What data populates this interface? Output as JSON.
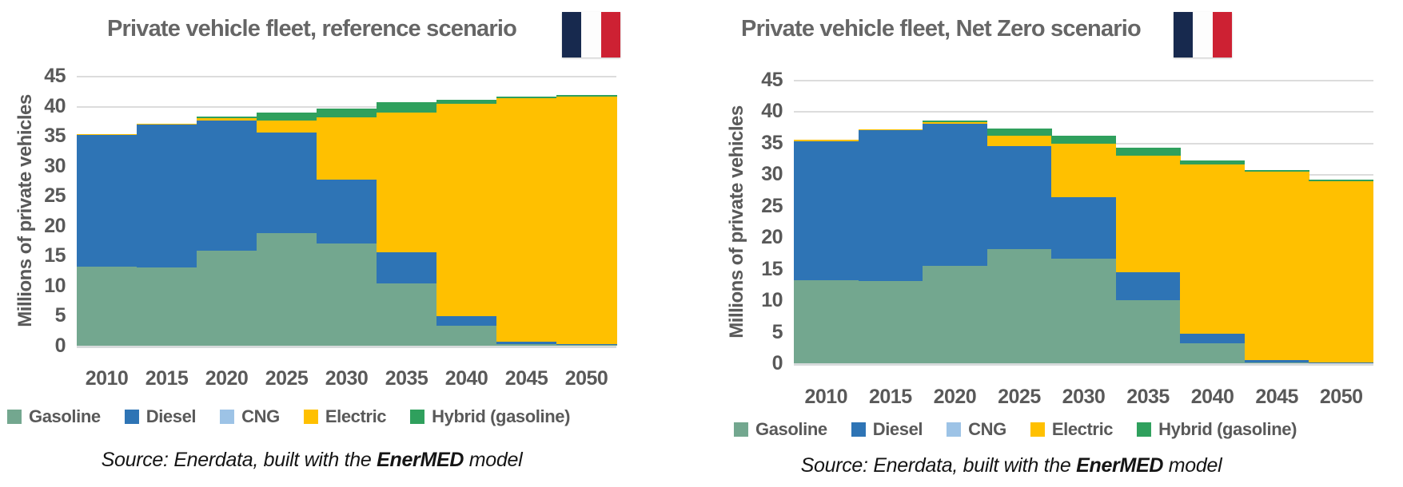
{
  "page": {
    "background": "#ffffff"
  },
  "legend_note": "legend items are derived from each chart's series names and colors",
  "chart_data": [
    {
      "type": "bar",
      "subtype": "stacked-step-100pct-gap0",
      "title": "Private vehicle fleet, reference scenario",
      "ylabel": "Millions of private vehicles",
      "xlabel": "",
      "ylim": [
        0,
        45
      ],
      "ytick_step": 5,
      "grid": true,
      "legend_position": "bottom",
      "flag_icon": "france-flag",
      "categories": [
        "2010",
        "2015",
        "2020",
        "2025",
        "2030",
        "2035",
        "2040",
        "2045",
        "2050"
      ],
      "series": [
        {
          "name": "Gasoline",
          "color": "#73a78f",
          "values": [
            13.2,
            13.0,
            15.8,
            18.8,
            17.0,
            10.4,
            3.3,
            0.3,
            0.1
          ]
        },
        {
          "name": "Diesel",
          "color": "#2e74b5",
          "values": [
            21.9,
            23.9,
            21.8,
            16.8,
            10.7,
            5.2,
            1.6,
            0.4,
            0.1
          ]
        },
        {
          "name": "CNG",
          "color": "#9dc3e6",
          "values": [
            0,
            0,
            0,
            0,
            0,
            0,
            0,
            0,
            0
          ]
        },
        {
          "name": "Electric",
          "color": "#ffc000",
          "values": [
            0.2,
            0.1,
            0.4,
            2.0,
            10.4,
            23.3,
            35.4,
            40.6,
            41.4
          ]
        },
        {
          "name": "Hybrid (gasoline)",
          "color": "#2fa05d",
          "values": [
            0,
            0,
            0.2,
            1.3,
            1.4,
            1.7,
            0.7,
            0.3,
            0.2
          ]
        }
      ],
      "totals_read_from_chart": [
        35.3,
        37.0,
        38.2,
        38.9,
        39.5,
        40.6,
        41.0,
        41.6,
        41.8
      ],
      "source": {
        "prefix": "Source: Enerdata, built with the ",
        "bold": "EnerMED",
        "suffix": " model"
      }
    },
    {
      "type": "bar",
      "subtype": "stacked-step-100pct-gap0",
      "title": "Private vehicle fleet, Net Zero scenario",
      "ylabel": "Millions of private vehicles",
      "xlabel": "",
      "ylim": [
        0,
        45
      ],
      "ytick_step": 5,
      "grid": true,
      "legend_position": "bottom",
      "flag_icon": "france-flag",
      "categories": [
        "2010",
        "2015",
        "2020",
        "2025",
        "2030",
        "2035",
        "2040",
        "2045",
        "2050"
      ],
      "series": [
        {
          "name": "Gasoline",
          "color": "#73a78f",
          "values": [
            13.2,
            13.0,
            15.5,
            18.1,
            16.6,
            10.0,
            3.2,
            0.1,
            0
          ]
        },
        {
          "name": "Diesel",
          "color": "#2e74b5",
          "values": [
            22.0,
            24.0,
            22.5,
            16.4,
            9.8,
            4.5,
            1.5,
            0.4,
            0.1
          ]
        },
        {
          "name": "CNG",
          "color": "#9dc3e6",
          "values": [
            0,
            0,
            0,
            0,
            0,
            0,
            0,
            0,
            0
          ]
        },
        {
          "name": "Electric",
          "color": "#ffc000",
          "values": [
            0.3,
            0.1,
            0.3,
            1.6,
            8.4,
            18.5,
            26.9,
            29.9,
            28.8
          ]
        },
        {
          "name": "Hybrid (gasoline)",
          "color": "#2fa05d",
          "values": [
            0,
            0,
            0.2,
            1.2,
            1.3,
            1.2,
            0.6,
            0.3,
            0.3
          ]
        }
      ],
      "totals_read_from_chart": [
        35.5,
        37.1,
        38.5,
        37.3,
        36.1,
        34.2,
        32.2,
        30.7,
        29.2
      ],
      "source": {
        "prefix": "Source: Enerdata, built with the ",
        "bold": "EnerMED",
        "suffix": " model"
      }
    }
  ],
  "colors": {
    "gridline": "#dcdcdc",
    "axis_baseline": "#d7dadb",
    "axis_text": "#595959",
    "title_text": "#666666",
    "flag_blue": "#17294e",
    "flag_white": "#fdfdfd",
    "flag_red": "#cd2133"
  }
}
